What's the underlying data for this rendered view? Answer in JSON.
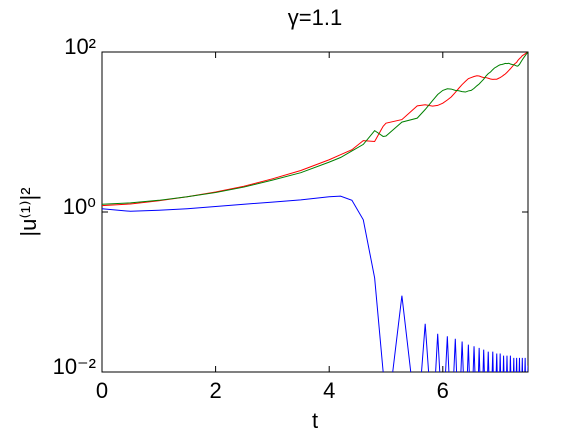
{
  "chart_data": {
    "type": "line",
    "title": "γ=1.1",
    "xlabel": "t",
    "ylabel": "|u⁽¹⁾|²",
    "log_y": true,
    "grid": false,
    "xlim": [
      0,
      7.5
    ],
    "xticks": [
      0,
      2,
      4,
      6
    ],
    "ylim": [
      0.01,
      100
    ],
    "yticks": [
      {
        "value": 0.01,
        "label": "10⁻²"
      },
      {
        "value": 1,
        "label": "10⁰"
      },
      {
        "value": 100,
        "label": "10²"
      }
    ],
    "x": [
      0,
      0.5,
      1,
      1.5,
      2,
      2.5,
      3,
      3.5,
      4,
      4.2,
      4.4,
      4.6,
      4.8,
      4.95,
      5.0,
      5.28,
      5.55,
      5.69,
      5.82,
      5.91,
      6.0,
      6.08,
      6.15,
      6.22,
      6.28,
      6.34,
      6.4,
      6.45,
      6.5,
      6.55,
      6.6,
      6.64,
      6.68,
      6.72,
      6.76,
      6.8,
      6.84,
      6.88,
      6.91,
      6.95,
      6.98,
      7.01,
      7.04,
      7.07,
      7.1,
      7.13,
      7.16,
      7.19,
      7.22,
      7.25,
      7.27,
      7.3,
      7.32,
      7.35,
      7.37,
      7.4,
      7.42,
      7.45,
      7.47,
      7.5
    ],
    "series": [
      {
        "color": "#0000ff",
        "values": [
          1.1,
          1.02,
          1.05,
          1.1,
          1.17,
          1.25,
          1.33,
          1.42,
          1.55,
          1.58,
          1.4,
          0.8,
          0.15,
          0.01,
          0.002,
          0.09,
          0.002,
          0.04,
          0.002,
          0.03,
          0.002,
          0.028,
          0.002,
          0.026,
          0.002,
          0.024,
          0.002,
          0.022,
          0.002,
          0.021,
          0.002,
          0.02,
          0.002,
          0.019,
          0.002,
          0.018,
          0.002,
          0.018,
          0.002,
          0.017,
          0.002,
          0.017,
          0.002,
          0.016,
          0.002,
          0.016,
          0.002,
          0.016,
          0.002,
          0.015,
          0.002,
          0.015,
          0.002,
          0.015,
          0.002,
          0.015,
          0.002,
          0.015,
          0.002,
          0.012
        ]
      },
      {
        "color": "#ff0000",
        "values": [
          1.2,
          1.26,
          1.38,
          1.55,
          1.78,
          2.1,
          2.6,
          3.3,
          4.5,
          5.2,
          6.0,
          7.8,
          7.6,
          11.8,
          12.9,
          14.3,
          21.2,
          21.9,
          21.1,
          21.5,
          22.9,
          25.1,
          27.5,
          31.2,
          35.1,
          39.2,
          43.1,
          46.4,
          47.9,
          49.4,
          50.5,
          50.1,
          48.9,
          47.9,
          47.9,
          47.0,
          46.0,
          45.5,
          45.7,
          45.7,
          46.8,
          47.9,
          49.4,
          51.3,
          53.1,
          55.6,
          58.6,
          61.7,
          65.3,
          69.2,
          71.6,
          74.1,
          78.3,
          82.6,
          85,
          90,
          92,
          95,
          97,
          100
        ]
      },
      {
        "color": "#008000",
        "values": [
          1.25,
          1.3,
          1.4,
          1.55,
          1.75,
          2.05,
          2.5,
          3.1,
          4.2,
          4.8,
          5.8,
          7.0,
          10.4,
          8.8,
          8.9,
          13.3,
          14.9,
          19.1,
          24.7,
          29.4,
          33.1,
          34.7,
          34.4,
          33.1,
          32.8,
          32.0,
          31.6,
          32.6,
          33.1,
          35.1,
          37.8,
          39.8,
          42.7,
          45.7,
          50.1,
          53.7,
          56.2,
          60.3,
          63.1,
          65.6,
          67.6,
          69.2,
          69.8,
          70.8,
          72.0,
          71.6,
          72.4,
          70.8,
          69.8,
          69.2,
          68.4,
          66.8,
          66.7,
          70,
          74,
          80,
          84,
          90,
          94,
          99
        ]
      }
    ]
  }
}
